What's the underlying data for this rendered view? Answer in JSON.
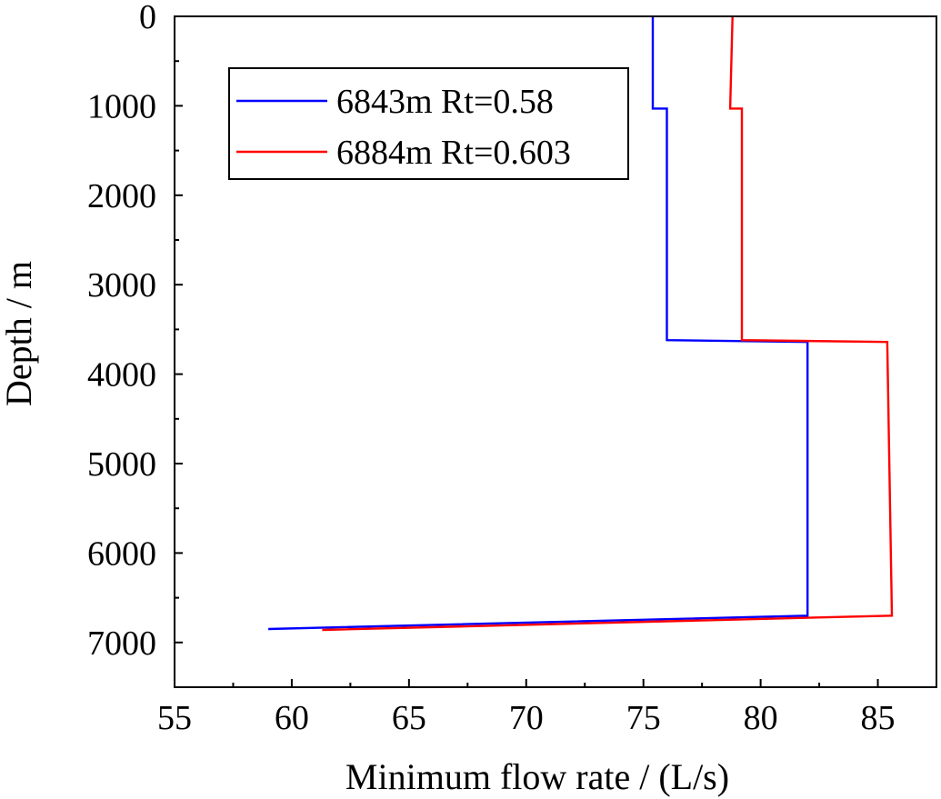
{
  "chart_data": {
    "type": "line",
    "title": "",
    "xlabel": "Minimum flow rate / (L/s)",
    "ylabel": "Depth / m",
    "xlim": [
      55,
      87.5
    ],
    "ylim": [
      0,
      7500
    ],
    "y_inverted": true,
    "xticks": [
      "55",
      "60",
      "65",
      "70",
      "75",
      "80",
      "85"
    ],
    "yticks": [
      "0",
      "1000",
      "2000",
      "3000",
      "4000",
      "5000",
      "6000",
      "7000"
    ],
    "grid": false,
    "legend_position": "top-left",
    "series": [
      {
        "name": "6843m Rt=0.58",
        "color": "#0000ff",
        "points": [
          [
            75.4,
            0
          ],
          [
            75.4,
            1030
          ],
          [
            76.0,
            1030
          ],
          [
            76.0,
            3620
          ],
          [
            82.0,
            3640
          ],
          [
            82.0,
            6700
          ],
          [
            59.0,
            6850
          ]
        ]
      },
      {
        "name": "6884m Rt=0.603",
        "color": "#ff0000",
        "points": [
          [
            78.8,
            0
          ],
          [
            78.7,
            1030
          ],
          [
            79.2,
            1030
          ],
          [
            79.2,
            3620
          ],
          [
            85.4,
            3640
          ],
          [
            85.6,
            6700
          ],
          [
            61.3,
            6860
          ]
        ]
      }
    ]
  }
}
